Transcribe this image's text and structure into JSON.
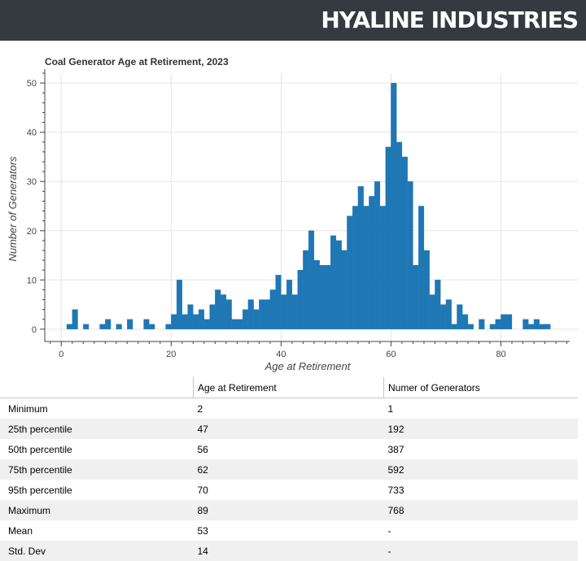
{
  "header": {
    "brand": "HYALINE INDUSTRIES"
  },
  "chart_data": {
    "type": "bar",
    "title": "Coal Generator Age at Retirement, 2023",
    "xlabel": "Age at Retirement",
    "ylabel": "Number of Generators",
    "xlim": [
      -3,
      94
    ],
    "ylim": [
      -2.5,
      52
    ],
    "xticks": [
      0,
      20,
      40,
      60,
      80
    ],
    "yticks": [
      0,
      10,
      20,
      30,
      40,
      50
    ],
    "grid": true,
    "color": "#1f77b4",
    "bin_width": 1,
    "x": [
      1.5,
      2.5,
      3.5,
      4.5,
      5.5,
      6.5,
      7.5,
      8.5,
      9.5,
      10.5,
      11.5,
      12.5,
      13.5,
      14.5,
      15.5,
      16.5,
      17.5,
      18.5,
      19.5,
      20.5,
      21.5,
      22.5,
      23.5,
      24.5,
      25.5,
      26.5,
      27.5,
      28.5,
      29.5,
      30.5,
      31.5,
      32.5,
      33.5,
      34.5,
      35.5,
      36.5,
      37.5,
      38.5,
      39.5,
      40.5,
      41.5,
      42.5,
      43.5,
      44.5,
      45.5,
      46.5,
      47.5,
      48.5,
      49.5,
      50.5,
      51.5,
      52.5,
      53.5,
      54.5,
      55.5,
      56.5,
      57.5,
      58.5,
      59.5,
      60.5,
      61.5,
      62.5,
      63.5,
      64.5,
      65.5,
      66.5,
      67.5,
      68.5,
      69.5,
      70.5,
      71.5,
      72.5,
      73.5,
      74.5,
      75.5,
      76.5,
      77.5,
      78.5,
      79.5,
      80.5,
      81.5,
      82.5,
      83.5,
      84.5,
      85.5,
      86.5,
      87.5,
      88.5
    ],
    "values": [
      1,
      4,
      0,
      1,
      0,
      0,
      1,
      2,
      0,
      1,
      0,
      2,
      0,
      0,
      2,
      1,
      0,
      0,
      1,
      3,
      10,
      3,
      5,
      3,
      4,
      2,
      5,
      8,
      7,
      6,
      2,
      2,
      4,
      6,
      4,
      6,
      6,
      8,
      11,
      7,
      10,
      7,
      12,
      16,
      20,
      14,
      13,
      13,
      19,
      18,
      16,
      23,
      25,
      29,
      25,
      27,
      30,
      25,
      37,
      50,
      38,
      35,
      30,
      13,
      25,
      16,
      7,
      10,
      5,
      6,
      1,
      5,
      3,
      1,
      0,
      2,
      0,
      1,
      2,
      3,
      3,
      0,
      0,
      2,
      1,
      2,
      1,
      1
    ]
  },
  "table": {
    "headers": [
      "",
      "Age at Retirement",
      "Numer of Generators"
    ],
    "rows": [
      [
        "Minimum",
        "2",
        "1"
      ],
      [
        "25th percentile",
        "47",
        "192"
      ],
      [
        "50th percentile",
        "56",
        "387"
      ],
      [
        "75th percentile",
        "62",
        "592"
      ],
      [
        "95th percentile",
        "70",
        "733"
      ],
      [
        "Maximum",
        "89",
        "768"
      ],
      [
        "Mean",
        "53",
        "-"
      ],
      [
        "Std. Dev",
        "14",
        "-"
      ]
    ]
  }
}
